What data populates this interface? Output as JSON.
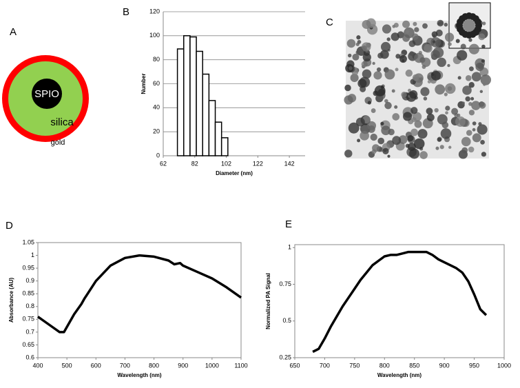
{
  "panel_labels": [
    "A",
    "B",
    "C",
    "D",
    "E"
  ],
  "diagram": {
    "core": "SPIO",
    "shell": "silica",
    "coating": "gold"
  },
  "chart_data": [
    {
      "type": "histogram",
      "x_label": "Diameter (nm)",
      "y_label": "Number",
      "bins": [
        71,
        75,
        79,
        83,
        87,
        91,
        95,
        99,
        103
      ],
      "values": [
        89,
        100,
        99,
        87,
        68,
        46,
        28,
        15
      ],
      "xlim": [
        62,
        152
      ],
      "xticks": [
        62,
        82,
        102,
        122,
        142
      ],
      "ylim": [
        0,
        120
      ],
      "yticks": [
        0,
        20,
        40,
        60,
        80,
        100,
        120
      ],
      "grid": true,
      "color": "#ffffff"
    },
    {
      "type": "line",
      "x_label": "Wavelength (nm)",
      "y_label": "Absorbance (AU)",
      "x": [
        400,
        425,
        450,
        475,
        490,
        500,
        525,
        550,
        560,
        600,
        650,
        700,
        750,
        800,
        850,
        870,
        890,
        900,
        950,
        1000,
        1050,
        1100
      ],
      "values": [
        0.76,
        0.74,
        0.72,
        0.7,
        0.7,
        0.72,
        0.77,
        0.81,
        0.83,
        0.9,
        0.96,
        0.99,
        1.0,
        0.995,
        0.98,
        0.965,
        0.97,
        0.96,
        0.935,
        0.91,
        0.875,
        0.835
      ],
      "xlim": [
        400,
        1100
      ],
      "xticks": [
        400,
        500,
        600,
        700,
        800,
        900,
        1000,
        1100
      ],
      "ylim": [
        0.6,
        1.05
      ],
      "yticks": [
        0.6,
        0.65,
        0.7,
        0.75,
        0.8,
        0.85,
        0.9,
        0.95,
        1,
        1.05
      ],
      "grid": false,
      "color": "#000000"
    },
    {
      "type": "line",
      "x_label": "Wavelength (nm)",
      "y_label": "Normalized PA Signal",
      "x": [
        680,
        690,
        700,
        710,
        720,
        730,
        740,
        750,
        760,
        770,
        780,
        790,
        800,
        810,
        820,
        830,
        840,
        850,
        860,
        870,
        880,
        890,
        900,
        910,
        920,
        930,
        940,
        950,
        960,
        970
      ],
      "values": [
        0.29,
        0.31,
        0.38,
        0.46,
        0.53,
        0.6,
        0.66,
        0.72,
        0.78,
        0.83,
        0.88,
        0.91,
        0.94,
        0.95,
        0.95,
        0.96,
        0.97,
        0.97,
        0.97,
        0.97,
        0.95,
        0.92,
        0.9,
        0.88,
        0.86,
        0.83,
        0.77,
        0.68,
        0.58,
        0.54
      ],
      "xlim": [
        650,
        1000
      ],
      "xticks": [
        650,
        700,
        750,
        800,
        850,
        900,
        950,
        1000
      ],
      "ylim": [
        0.25,
        1.02
      ],
      "yticks": [
        0.25,
        0.5,
        0.75,
        1
      ],
      "grid": false,
      "color": "#000000"
    }
  ]
}
